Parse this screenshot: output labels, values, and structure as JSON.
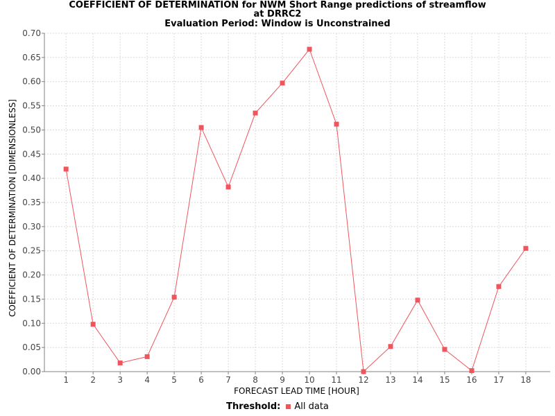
{
  "chart_data": {
    "type": "line",
    "title": "COEFFICIENT OF DETERMINATION for NWM Short Range predictions of streamflow",
    "subtitle_lines": [
      "at DRRC2",
      "Evaluation Period: Window is Unconstrained"
    ],
    "xlabel": "FORECAST LEAD TIME [HOUR]",
    "ylabel": "COEFFICIENT OF DETERMINATION [DIMENSIONLESS]",
    "x_ticks": [
      "1",
      "2",
      "3",
      "4",
      "5",
      "6",
      "7",
      "8",
      "9",
      "10",
      "11",
      "12",
      "13",
      "14",
      "15",
      "16",
      "17",
      "18"
    ],
    "xlim": [
      0.2,
      18.9
    ],
    "ylim": [
      0,
      0.7
    ],
    "y_ticks": [
      "0.00",
      "0.05",
      "0.10",
      "0.15",
      "0.20",
      "0.25",
      "0.30",
      "0.35",
      "0.40",
      "0.45",
      "0.50",
      "0.55",
      "0.60",
      "0.65",
      "0.70"
    ],
    "grid": true,
    "legend_placement": "bottom-center",
    "legend_title": "Threshold:",
    "series": [
      {
        "name": "All data",
        "color": "#f0545c",
        "x": [
          1,
          2,
          3,
          4,
          5,
          6,
          7,
          8,
          9,
          10,
          11,
          12,
          13,
          14,
          15,
          16,
          17,
          18
        ],
        "y": [
          0.419,
          0.098,
          0.018,
          0.031,
          0.154,
          0.505,
          0.382,
          0.535,
          0.597,
          0.667,
          0.512,
          0.0,
          0.052,
          0.148,
          0.046,
          0.002,
          0.176,
          0.255
        ]
      }
    ]
  }
}
